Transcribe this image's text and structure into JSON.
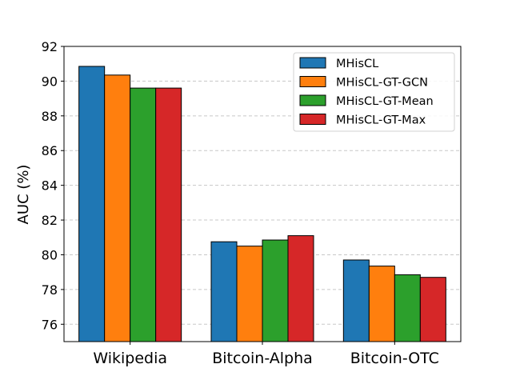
{
  "chart_data": {
    "type": "bar",
    "title": "",
    "xlabel": "",
    "ylabel": "AUC (%)",
    "categories": [
      "Wikipedia",
      "Bitcoin-Alpha",
      "Bitcoin-OTC"
    ],
    "series": [
      {
        "name": "MHisCL",
        "color": "#1f77b4",
        "values": [
          90.85,
          80.75,
          79.7
        ]
      },
      {
        "name": "MHisCL-GT-GCN",
        "color": "#ff7f0e",
        "values": [
          90.35,
          80.5,
          79.35
        ]
      },
      {
        "name": "MHisCL-GT-Mean",
        "color": "#2ca02c",
        "values": [
          89.6,
          80.85,
          78.85
        ]
      },
      {
        "name": "MHisCL-GT-Max",
        "color": "#d62728",
        "values": [
          89.6,
          81.1,
          78.7
        ]
      }
    ],
    "ylim": [
      75,
      92
    ],
    "yticks": [
      76,
      78,
      80,
      82,
      84,
      86,
      88,
      90,
      92
    ],
    "grid": "y-dashed",
    "legend_position": "top-right"
  }
}
